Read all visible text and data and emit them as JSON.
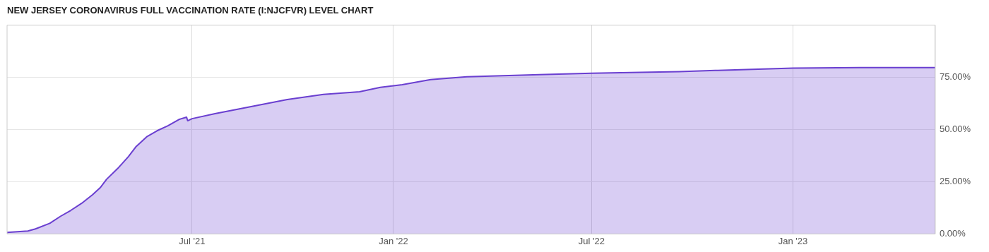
{
  "chart_data": {
    "type": "area",
    "title": "NEW JERSEY CORONAVIRUS FULL VACCINATION RATE (I:NJCFVR) LEVEL CHART",
    "x": [
      "2021-01-13",
      "2021-02-01",
      "2021-02-08",
      "2021-02-21",
      "2021-03-03",
      "2021-03-12",
      "2021-03-22",
      "2021-04-01",
      "2021-04-08",
      "2021-04-14",
      "2021-04-24",
      "2021-05-04",
      "2021-05-11",
      "2021-05-21",
      "2021-05-30",
      "2021-06-09",
      "2021-06-19",
      "2021-06-26",
      "2021-06-27",
      "2021-07-01",
      "2021-07-22",
      "2021-08-24",
      "2021-09-26",
      "2021-10-29",
      "2021-12-01",
      "2021-12-20",
      "2022-01-09",
      "2022-02-04",
      "2022-03-09",
      "2022-05-14",
      "2022-07-01",
      "2022-09-19",
      "2022-10-22",
      "2023-01-01",
      "2023-03-03",
      "2023-05-11"
    ],
    "series": [
      {
        "color": "#6a3fd0",
        "values": [
          0.7,
          1.4,
          2.4,
          5.1,
          8.5,
          11.2,
          14.6,
          18.7,
          22.1,
          26.2,
          31.3,
          37.1,
          41.9,
          46.7,
          49.4,
          51.8,
          54.8,
          55.9,
          54.2,
          55.2,
          57.6,
          61.0,
          64.4,
          66.8,
          68.1,
          70.2,
          71.5,
          73.9,
          75.3,
          76.3,
          77.0,
          77.7,
          78.3,
          79.4,
          79.7,
          79.7
        ]
      }
    ],
    "xlim": [
      "2021-01-13",
      "2023-05-11"
    ],
    "xticks": [
      {
        "value": "2021-07-01",
        "label": "Jul '21"
      },
      {
        "value": "2022-01-01",
        "label": "Jan '22"
      },
      {
        "value": "2022-07-01",
        "label": "Jul '22"
      },
      {
        "value": "2023-01-01",
        "label": "Jan '23"
      }
    ],
    "ylim": [
      0,
      100
    ],
    "yticks": [
      {
        "value": 0,
        "label": "0.00%"
      },
      {
        "value": 25,
        "label": "25.00%"
      },
      {
        "value": 50,
        "label": "50.00%"
      },
      {
        "value": 75,
        "label": "75.00%"
      }
    ],
    "grid": true,
    "legend": false
  }
}
